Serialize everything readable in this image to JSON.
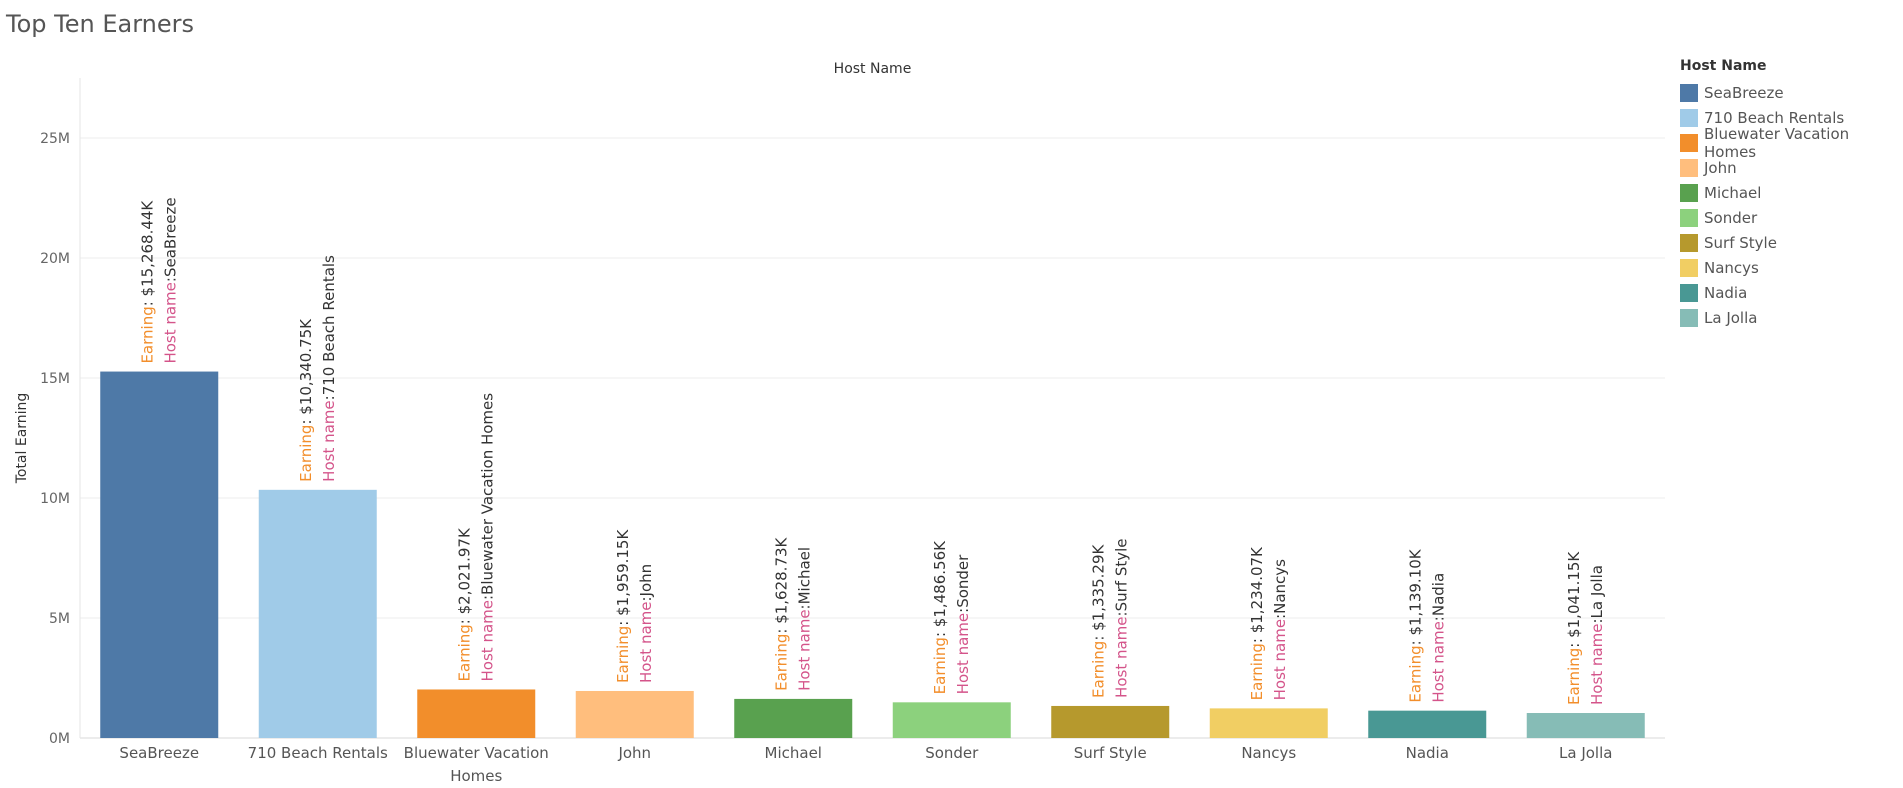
{
  "title": "Top Ten Earners",
  "chart_data": {
    "type": "bar",
    "title": "Top Ten Earners",
    "header": "Host Name",
    "xlabel": "",
    "ylabel": "Total Earning",
    "ylim": [
      0,
      27500000
    ],
    "yticks": [
      0,
      5000000,
      10000000,
      15000000,
      20000000,
      25000000
    ],
    "ytick_labels": [
      "0M",
      "5M",
      "10M",
      "15M",
      "20M",
      "25M"
    ],
    "grid": true,
    "legend": {
      "title": "Host Name",
      "position": "right"
    },
    "label_prefix_earning": "Earning",
    "label_prefix_host": "Host name",
    "categories": [
      "SeaBreeze",
      "710 Beach Rentals",
      "Bluewater Vacation Homes",
      "John",
      "Michael",
      "Sonder",
      "Surf Style",
      "Nancys",
      "Nadia",
      "La Jolla"
    ],
    "tick_labels": [
      [
        "SeaBreeze"
      ],
      [
        "710 Beach Rentals"
      ],
      [
        "Bluewater Vacation",
        "Homes"
      ],
      [
        "John"
      ],
      [
        "Michael"
      ],
      [
        "Sonder"
      ],
      [
        "Surf Style"
      ],
      [
        "Nancys"
      ],
      [
        "Nadia"
      ],
      [
        "La Jolla"
      ]
    ],
    "values": [
      15268440,
      10340750,
      2021970,
      1959150,
      1628730,
      1486560,
      1335290,
      1234070,
      1139100,
      1041150
    ],
    "data_labels": [
      "$15,268.44K",
      "$10,340.75K",
      "$2,021.97K",
      "$1,959.15K",
      "$1,628.73K",
      "$1,486.56K",
      "$1,335.29K",
      "$1,234.07K",
      "$1,139.10K",
      "$1,041.15K"
    ],
    "colors": [
      "#4e79a7",
      "#a0cbe8",
      "#f28e2b",
      "#ffbe7d",
      "#59a14f",
      "#8cd17d",
      "#b6992d",
      "#f1ce63",
      "#499894",
      "#86bcb6"
    ],
    "label_colors": {
      "earning": "#f28e2b",
      "host": "#d4548a",
      "value": "#333333"
    }
  }
}
